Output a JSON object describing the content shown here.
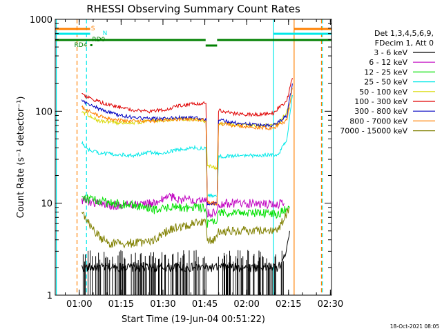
{
  "chart_data": {
    "type": "line",
    "title": "RHESSI Observing Summary Count Rates",
    "xlabel": "Start Time (19-Jun-04 00:51:22)",
    "ylabel": "Count Rate (s⁻¹ detector⁻¹)",
    "yscale": "log",
    "ylim": [
      1,
      1000
    ],
    "xlim_minutes_after_0051": [
      0,
      99
    ],
    "x_ticks": [
      {
        "label": "01:00",
        "minutes": 8.6
      },
      {
        "label": "01:15",
        "minutes": 23.6
      },
      {
        "label": "01:30",
        "minutes": 38.6
      },
      {
        "label": "01:45",
        "minutes": 53.6
      },
      {
        "label": "02:00",
        "minutes": 68.6
      },
      {
        "label": "02:15",
        "minutes": 83.6
      },
      {
        "label": "02:30",
        "minutes": 98.6
      }
    ],
    "y_ticks": [
      {
        "label": "1",
        "value": 1
      },
      {
        "label": "10",
        "value": 10
      },
      {
        "label": "100",
        "value": 100
      },
      {
        "label": "1000",
        "value": 1000
      }
    ],
    "legend_header": [
      "Det 1,3,4,5,6,9,",
      "FDecim 1, Att 0"
    ],
    "legend_position": "right",
    "series": [
      {
        "name": "3 - 6 keV",
        "color": "#000000",
        "points": [
          [
            9.5,
            2
          ],
          [
            12,
            2
          ],
          [
            20,
            2
          ],
          [
            30,
            2
          ],
          [
            40,
            2
          ],
          [
            50,
            2
          ],
          [
            54,
            2
          ],
          [
            58,
            2
          ],
          [
            66,
            2
          ],
          [
            76,
            2
          ],
          [
            80,
            2
          ],
          [
            82,
            2.5
          ],
          [
            84,
            5
          ]
        ]
      },
      {
        "name": "6 - 12 keV",
        "color": "#c000c0",
        "points": [
          [
            9.5,
            11
          ],
          [
            12,
            10.5
          ],
          [
            20,
            9.5
          ],
          [
            30,
            9.8
          ],
          [
            37,
            10
          ],
          [
            40,
            12
          ],
          [
            45,
            11
          ],
          [
            50,
            11
          ],
          [
            54,
            11.5
          ],
          [
            54.5,
            7.8
          ],
          [
            58,
            7.8
          ],
          [
            58.5,
            10
          ],
          [
            66,
            10
          ],
          [
            72,
            9.8
          ],
          [
            80,
            9.8
          ],
          [
            82,
            10
          ]
        ]
      },
      {
        "name": "12 - 25 keV",
        "color": "#00e000",
        "points": [
          [
            9.5,
            12
          ],
          [
            12,
            11
          ],
          [
            20,
            10
          ],
          [
            28,
            9.5
          ],
          [
            35,
            8.5
          ],
          [
            43,
            9
          ],
          [
            50,
            9
          ],
          [
            54,
            9
          ],
          [
            54.5,
            6
          ],
          [
            58,
            6.3
          ],
          [
            58.5,
            8
          ],
          [
            66,
            8
          ],
          [
            72,
            7.8
          ],
          [
            80,
            7.7
          ],
          [
            84,
            9
          ]
        ]
      },
      {
        "name": "25 - 50 keV",
        "color": "#00e8e8",
        "points": [
          [
            9.5,
            45
          ],
          [
            12,
            38
          ],
          [
            16,
            35
          ],
          [
            22,
            34
          ],
          [
            28,
            33
          ],
          [
            34,
            36
          ],
          [
            38,
            35
          ],
          [
            44,
            38
          ],
          [
            50,
            40
          ],
          [
            54,
            39
          ],
          [
            54.5,
            12.5
          ],
          [
            58,
            11.5
          ],
          [
            58.5,
            32
          ],
          [
            66,
            33
          ],
          [
            72,
            33
          ],
          [
            80,
            34
          ],
          [
            83,
            50
          ],
          [
            85,
            150
          ]
        ]
      },
      {
        "name": "50 - 100 keV",
        "color": "#d8d800",
        "points": [
          [
            9.5,
            100
          ],
          [
            12,
            90
          ],
          [
            16,
            78
          ],
          [
            22,
            75
          ],
          [
            28,
            75
          ],
          [
            34,
            78
          ],
          [
            40,
            80
          ],
          [
            44,
            82
          ],
          [
            50,
            80
          ],
          [
            54,
            78
          ],
          [
            54.5,
            26
          ],
          [
            58,
            24
          ],
          [
            58.5,
            72
          ],
          [
            64,
            72
          ],
          [
            72,
            70
          ],
          [
            80,
            72
          ],
          [
            84,
            110
          ]
        ]
      },
      {
        "name": "100 - 300 keV",
        "color": "#e00000",
        "points": [
          [
            9.5,
            150
          ],
          [
            12,
            140
          ],
          [
            16,
            125
          ],
          [
            22,
            112
          ],
          [
            28,
            103
          ],
          [
            34,
            100
          ],
          [
            40,
            105
          ],
          [
            44,
            115
          ],
          [
            50,
            120
          ],
          [
            54,
            122
          ],
          [
            54.5,
            10
          ],
          [
            58,
            10
          ],
          [
            58.5,
            103
          ],
          [
            64,
            95
          ],
          [
            70,
            92
          ],
          [
            78,
            95
          ],
          [
            83,
            130
          ],
          [
            85,
            230
          ]
        ]
      },
      {
        "name": "300 - 800 keV",
        "color": "#0000c0",
        "points": [
          [
            9.5,
            130
          ],
          [
            12,
            120
          ],
          [
            16,
            105
          ],
          [
            22,
            92
          ],
          [
            28,
            85
          ],
          [
            34,
            83
          ],
          [
            40,
            83
          ],
          [
            44,
            86
          ],
          [
            50,
            84
          ],
          [
            54,
            82
          ],
          [
            54.5,
            10
          ],
          [
            58,
            10
          ],
          [
            58.5,
            80
          ],
          [
            64,
            75
          ],
          [
            70,
            72
          ],
          [
            78,
            70
          ],
          [
            83,
            90
          ],
          [
            85,
            200
          ]
        ]
      },
      {
        "name": "800 - 7000 keV",
        "color": "#ff8000",
        "points": [
          [
            9.5,
            110
          ],
          [
            12,
            100
          ],
          [
            16,
            88
          ],
          [
            22,
            80
          ],
          [
            28,
            78
          ],
          [
            34,
            78
          ],
          [
            40,
            80
          ],
          [
            44,
            81
          ],
          [
            50,
            81
          ],
          [
            54,
            80
          ],
          [
            54.5,
            10
          ],
          [
            58,
            10
          ],
          [
            58.5,
            74
          ],
          [
            64,
            70
          ],
          [
            70,
            67
          ],
          [
            78,
            65
          ],
          [
            83,
            80
          ],
          [
            85,
            180
          ]
        ]
      },
      {
        "name": "7000 - 15000 keV",
        "color": "#808000",
        "points": [
          [
            9.5,
            8
          ],
          [
            12,
            6
          ],
          [
            16,
            4.2
          ],
          [
            20,
            3.6
          ],
          [
            30,
            3.7
          ],
          [
            36,
            4
          ],
          [
            40,
            5
          ],
          [
            44,
            5.5
          ],
          [
            50,
            6
          ],
          [
            54,
            6.5
          ],
          [
            54.5,
            4
          ],
          [
            58,
            4
          ],
          [
            58.5,
            5
          ],
          [
            66,
            5
          ],
          [
            72,
            5
          ],
          [
            80,
            5.2
          ],
          [
            84,
            9
          ]
        ]
      }
    ],
    "annotations": [
      {
        "label": "S",
        "color": "#ff8000"
      },
      {
        "label": "N",
        "color": "#00e8e8"
      },
      {
        "label": "RD4",
        "color": "#008000"
      },
      {
        "label": "RD0",
        "color": "#008000"
      }
    ],
    "footer": "18-Oct-2021 08:05"
  }
}
